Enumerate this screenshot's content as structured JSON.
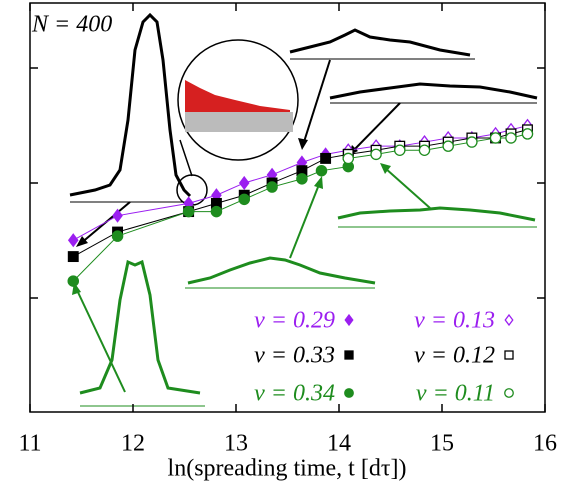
{
  "chart_data": {
    "type": "scatter",
    "annotation": "N = 400",
    "x_label": "ln(spreading time, t [dτ])",
    "xlim": [
      11,
      16
    ],
    "xticks": [
      11,
      12,
      13,
      14,
      15,
      16
    ],
    "ylim": [
      0,
      1
    ],
    "legend": "lower right",
    "series": [
      {
        "name": "ν = 0.29",
        "color": "#9b1ff0",
        "marker": "diamond",
        "filled": true,
        "x": [
          11.42,
          11.85,
          12.54,
          12.81,
          13.08,
          13.35,
          13.64,
          13.87
        ],
        "values": [
          0.42,
          0.48,
          0.51,
          0.53,
          0.56,
          0.58,
          0.61,
          0.63
        ]
      },
      {
        "name": "ν = 0.13",
        "color": "#9b1ff0",
        "marker": "diamond",
        "filled": false,
        "x": [
          14.09,
          14.36,
          14.59,
          14.83,
          15.06,
          15.29,
          15.52,
          15.67,
          15.83
        ],
        "values": [
          0.64,
          0.65,
          0.65,
          0.66,
          0.67,
          0.67,
          0.68,
          0.69,
          0.7
        ]
      },
      {
        "name": "ν = 0.33",
        "color": "#000000",
        "marker": "square",
        "filled": true,
        "x": [
          11.42,
          11.85,
          12.54,
          12.81,
          13.08,
          13.35,
          13.64,
          13.87,
          14.09
        ],
        "values": [
          0.38,
          0.44,
          0.49,
          0.51,
          0.53,
          0.56,
          0.59,
          0.62,
          0.63
        ]
      },
      {
        "name": "ν = 0.12",
        "color": "#000000",
        "marker": "square",
        "filled": false,
        "x": [
          14.09,
          14.36,
          14.59,
          14.83,
          15.06,
          15.29,
          15.52,
          15.67,
          15.83
        ],
        "values": [
          0.63,
          0.64,
          0.65,
          0.65,
          0.66,
          0.67,
          0.67,
          0.68,
          0.69
        ]
      },
      {
        "name": "ν = 0.34",
        "color": "#1e8c1e",
        "marker": "circle",
        "filled": true,
        "x": [
          11.42,
          11.85,
          12.54,
          12.81,
          13.08,
          13.35,
          13.64,
          13.83,
          14.09
        ],
        "values": [
          0.32,
          0.43,
          0.49,
          0.49,
          0.52,
          0.55,
          0.57,
          0.59,
          0.6
        ]
      },
      {
        "name": "ν = 0.11",
        "color": "#1e8c1e",
        "marker": "circle",
        "filled": false,
        "x": [
          14.09,
          14.36,
          14.59,
          14.83,
          15.06,
          15.29,
          15.52,
          15.67,
          15.83
        ],
        "values": [
          0.62,
          0.63,
          0.64,
          0.64,
          0.65,
          0.66,
          0.67,
          0.67,
          0.68
        ]
      }
    ]
  }
}
